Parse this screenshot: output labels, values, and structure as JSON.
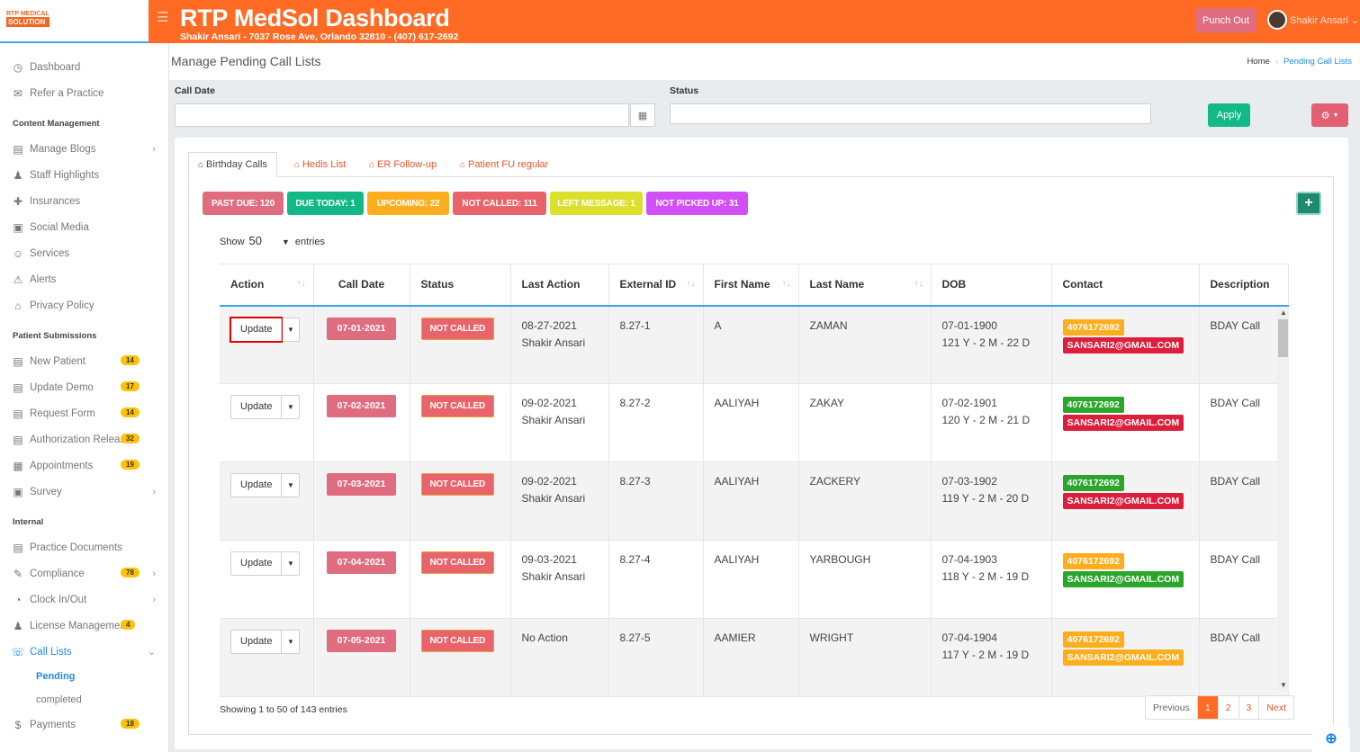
{
  "app": {
    "logo_line1": "RTP MEDICAL",
    "logo_line2": "SOLUTION",
    "title": "RTP MedSol Dashboard",
    "subtitle": "Shakir Ansari - 7037 Rose Ave, Orlando 32810 - (407) 617-2692",
    "punch_label": "Punch Out",
    "user_name": "Shakir Ansari",
    "accent": "#ff6a25"
  },
  "sidebar": {
    "top": [
      {
        "label": "Dashboard",
        "icon": "speedometer-icon"
      },
      {
        "label": "Refer a Practice",
        "icon": "envelope-icon"
      }
    ],
    "content_heading": "Content Management",
    "content": [
      {
        "label": "Manage Blogs",
        "icon": "blog-icon",
        "chev": true
      },
      {
        "label": "Staff Highlights",
        "icon": "staff-icon"
      },
      {
        "label": "Insurances",
        "icon": "insurance-icon"
      },
      {
        "label": "Social Media",
        "icon": "social-icon"
      },
      {
        "label": "Services",
        "icon": "services-icon"
      },
      {
        "label": "Alerts",
        "icon": "alert-icon"
      },
      {
        "label": "Privacy Policy",
        "icon": "privacy-icon"
      }
    ],
    "patient_heading": "Patient Submissions",
    "patient": [
      {
        "label": "New Patient",
        "icon": "clipboard-icon",
        "badge": "14"
      },
      {
        "label": "Update Demo",
        "icon": "clipboard-icon",
        "badge": "17"
      },
      {
        "label": "Request Form",
        "icon": "clipboard-icon",
        "badge": "14"
      },
      {
        "label": "Authorization Release",
        "icon": "clipboard-icon",
        "badge": "32"
      },
      {
        "label": "Appointments",
        "icon": "calendar-icon",
        "badge": "19"
      },
      {
        "label": "Survey",
        "icon": "survey-icon",
        "chev": true
      }
    ],
    "internal_heading": "Internal",
    "internal": [
      {
        "label": "Practice Documents",
        "icon": "documents-icon"
      },
      {
        "label": "Compliance",
        "icon": "compliance-icon",
        "badge": "78",
        "chev": true
      },
      {
        "label": "Clock In/Out",
        "icon": "clock-icon",
        "chev": true
      },
      {
        "label": "License Management",
        "icon": "license-icon",
        "badge": "4"
      },
      {
        "label": "Call Lists",
        "icon": "call-list-icon",
        "chev": true,
        "active": true
      }
    ],
    "call_sub": [
      "Pending",
      "completed"
    ],
    "payments": {
      "label": "Payments",
      "icon": "payments-icon",
      "badge": "18"
    }
  },
  "page": {
    "title": "Manage Pending Call Lists",
    "breadcrumb_home": "Home",
    "breadcrumb_current": "Pending Call Lists"
  },
  "filters": {
    "call_date_label": "Call Date",
    "call_date_value": "",
    "status_label": "Status",
    "status_value": "",
    "apply_label": "Apply"
  },
  "tabs": [
    "Birthday Calls",
    "Hedis List",
    "ER Follow-up",
    "Patient FU regular"
  ],
  "counters": [
    {
      "label": "PAST DUE: 120",
      "color": "#e06d7f"
    },
    {
      "label": "DUE TODAY: 1",
      "color": "#12b886"
    },
    {
      "label": "UPCOMING: 22",
      "color": "#fcae1e"
    },
    {
      "label": "NOT CALLED: 111",
      "color": "#e9646a"
    },
    {
      "label": "LEFT MESSAGE: 1",
      "color": "#dbe02c"
    },
    {
      "label": "NOT PICKED UP: 31",
      "color": "#d14ff5"
    }
  ],
  "length": {
    "show": "Show",
    "value": "50",
    "entries": "entries"
  },
  "table": {
    "columns": [
      "Action",
      "Call Date",
      "Status",
      "Last Action",
      "External ID",
      "First Name",
      "Last Name",
      "DOB",
      "Contact",
      "Description"
    ],
    "rows": [
      {
        "action": "Update",
        "call_date": "07-01-2021",
        "status": "NOT CALLED",
        "last_action": "08-27-2021",
        "last_by": "Shakir Ansari",
        "ext_id": "8.27-1",
        "first": "A",
        "last": "ZAMAN",
        "dob": "07-01-1900",
        "age": "121 Y - 2 M - 22 D",
        "phone": "4076172692",
        "phone_color": "#fcae1e",
        "email": "SANSARI2@GMAIL.COM",
        "email_color": "#dc1f3c",
        "desc": "BDAY Call"
      },
      {
        "action": "Update",
        "call_date": "07-02-2021",
        "status": "NOT CALLED",
        "last_action": "09-02-2021",
        "last_by": "Shakir Ansari",
        "ext_id": "8.27-2",
        "first": "AALIYAH",
        "last": "ZAKAY",
        "dob": "07-02-1901",
        "age": "120 Y - 2 M - 21 D",
        "phone": "4076172692",
        "phone_color": "#2ca52c",
        "email": "SANSARI2@GMAIL.COM",
        "email_color": "#dc1f3c",
        "desc": "BDAY Call"
      },
      {
        "action": "Update",
        "call_date": "07-03-2021",
        "status": "NOT CALLED",
        "last_action": "09-02-2021",
        "last_by": "Shakir Ansari",
        "ext_id": "8.27-3",
        "first": "AALIYAH",
        "last": "ZACKERY",
        "dob": "07-03-1902",
        "age": "119 Y - 2 M - 20 D",
        "phone": "4076172692",
        "phone_color": "#2ca52c",
        "email": "SANSARI2@GMAIL.COM",
        "email_color": "#dc1f3c",
        "desc": "BDAY Call"
      },
      {
        "action": "Update",
        "call_date": "07-04-2021",
        "status": "NOT CALLED",
        "last_action": "09-03-2021",
        "last_by": "Shakir Ansari",
        "ext_id": "8.27-4",
        "first": "AALIYAH",
        "last": "YARBOUGH",
        "dob": "07-04-1903",
        "age": "118 Y - 2 M - 19 D",
        "phone": "4076172692",
        "phone_color": "#fcae1e",
        "email": "SANSARI2@GMAIL.COM",
        "email_color": "#2ca52c",
        "desc": "BDAY Call"
      },
      {
        "action": "Update",
        "call_date": "07-05-2021",
        "status": "NOT CALLED",
        "last_action": "No Action",
        "last_by": "",
        "ext_id": "8.27-5",
        "first": "AAMIER",
        "last": "WRIGHT",
        "dob": "07-04-1904",
        "age": "117 Y - 2 M - 19 D",
        "phone": "4076172692",
        "phone_color": "#fcae1e",
        "email": "SANSARI2@GMAIL.COM",
        "email_color": "#fcae1e",
        "desc": "BDAY Call"
      }
    ]
  },
  "footer": {
    "info": "Showing 1 to 50 of 143 entries",
    "prev": "Previous",
    "pages": [
      "1",
      "2",
      "3"
    ],
    "next": "Next"
  }
}
